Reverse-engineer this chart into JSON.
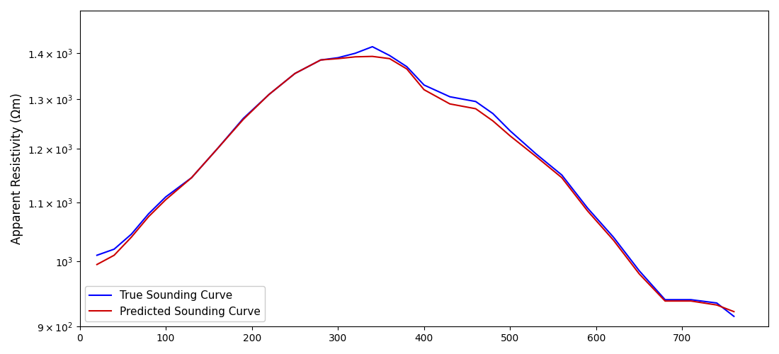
{
  "ylabel": "Apparent Resistivity (Ωm)",
  "true_x": [
    20,
    40,
    60,
    80,
    100,
    130,
    160,
    190,
    220,
    250,
    280,
    300,
    320,
    340,
    360,
    380,
    400,
    430,
    460,
    480,
    500,
    530,
    560,
    590,
    620,
    650,
    680,
    710,
    740,
    760
  ],
  "true_y": [
    1010,
    1020,
    1045,
    1080,
    1110,
    1145,
    1200,
    1260,
    1310,
    1355,
    1385,
    1390,
    1400,
    1415,
    1395,
    1370,
    1330,
    1305,
    1295,
    1270,
    1235,
    1190,
    1150,
    1090,
    1040,
    985,
    940,
    940,
    935,
    915
  ],
  "pred_x": [
    20,
    40,
    60,
    80,
    100,
    130,
    160,
    190,
    220,
    250,
    280,
    300,
    320,
    340,
    360,
    380,
    400,
    430,
    460,
    480,
    500,
    530,
    560,
    590,
    620,
    650,
    680,
    710,
    740,
    760
  ],
  "pred_y": [
    995,
    1010,
    1040,
    1075,
    1105,
    1145,
    1200,
    1258,
    1310,
    1355,
    1385,
    1388,
    1392,
    1393,
    1388,
    1365,
    1320,
    1290,
    1280,
    1255,
    1225,
    1185,
    1145,
    1085,
    1035,
    980,
    938,
    938,
    932,
    922
  ],
  "true_color": "#0000ff",
  "pred_color": "#cc0000",
  "legend_labels": [
    "True Sounding Curve",
    "Predicted Sounding Curve"
  ],
  "xlim": [
    0,
    800
  ],
  "ylim": [
    900,
    1500
  ],
  "yticks": [
    900,
    1000,
    1100,
    1200,
    1300,
    1400
  ],
  "xticks": [
    0,
    100,
    200,
    300,
    400,
    500,
    600,
    700
  ],
  "figsize": [
    11.0,
    5.0
  ],
  "dpi": 100
}
